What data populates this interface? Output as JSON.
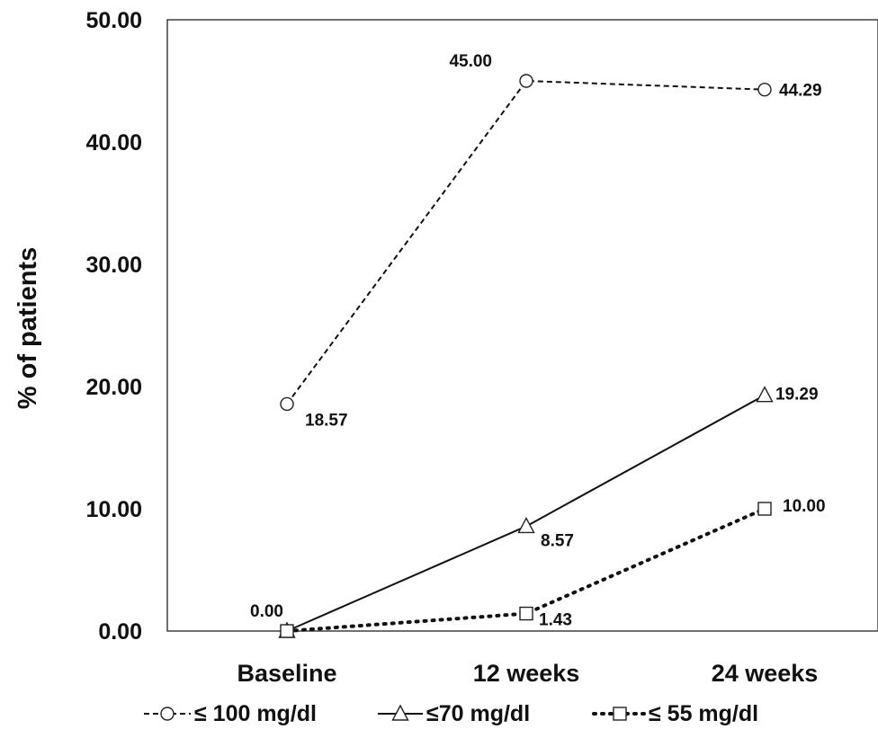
{
  "chart_data": {
    "type": "line",
    "title": "",
    "xlabel": "",
    "ylabel": "% of patients",
    "categories": [
      "Baseline",
      "12 weeks",
      "24 weeks"
    ],
    "ylim": [
      0,
      50
    ],
    "yticks": [
      "0.00",
      "10.00",
      "20.00",
      "30.00",
      "40.00",
      "50.00"
    ],
    "grid": false,
    "legend_position": "bottom",
    "series": [
      {
        "name": "≤ 100 mg/dl",
        "values": [
          18.57,
          45.0,
          44.29
        ],
        "labels": [
          "18.57",
          "45.00",
          "44.29"
        ],
        "marker": "circle",
        "line_style": "dashed",
        "color": "#111111"
      },
      {
        "name": "≤70 mg/dl",
        "values": [
          0.0,
          8.57,
          19.29
        ],
        "labels": [
          "0.00",
          "8.57",
          "19.29"
        ],
        "marker": "triangle",
        "line_style": "solid",
        "color": "#111111"
      },
      {
        "name": "≤ 55 mg/dl",
        "values": [
          0.0,
          1.43,
          10.0
        ],
        "labels": [
          "",
          "1.43",
          "10.00"
        ],
        "marker": "square",
        "line_style": "dotted",
        "color": "#111111"
      }
    ]
  }
}
